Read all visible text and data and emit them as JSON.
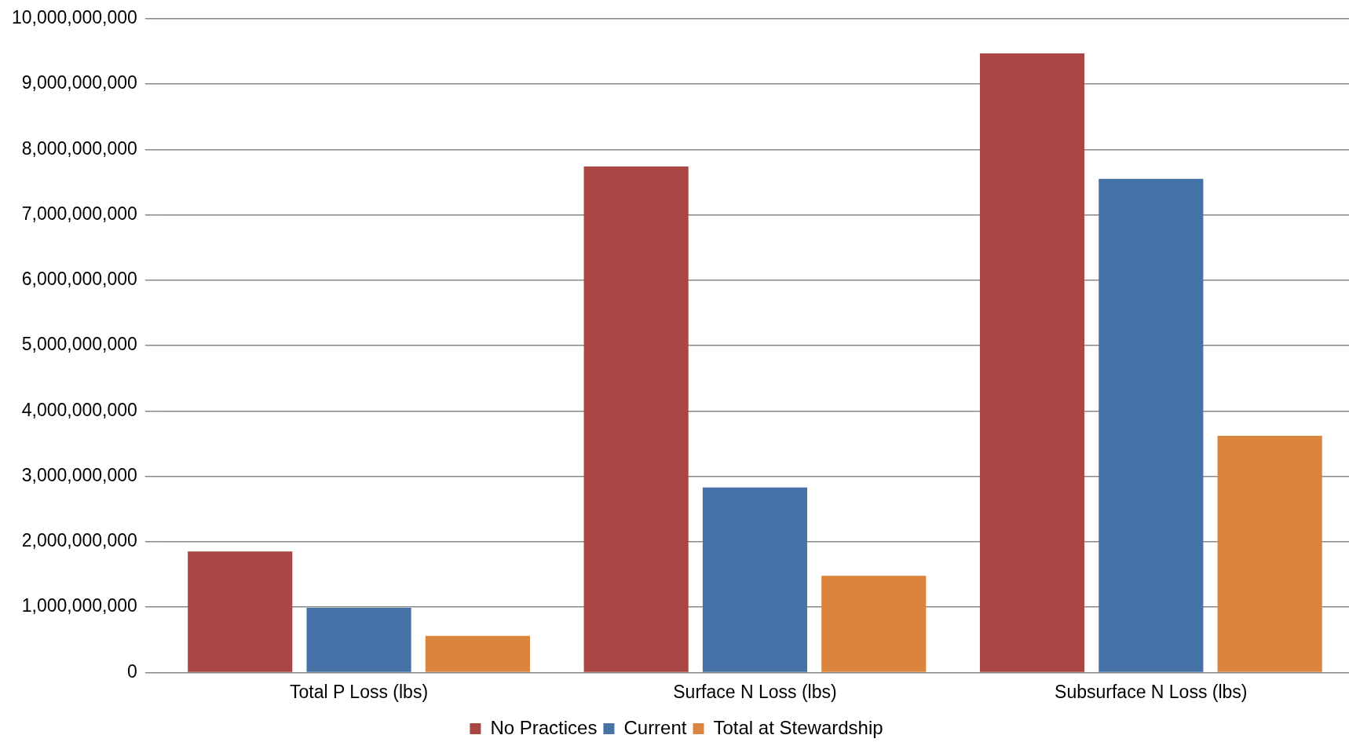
{
  "chart_data": {
    "type": "bar",
    "categories": [
      "Total P Loss (lbs)",
      "Surface N Loss (lbs)",
      "Subsurface N Loss (lbs)"
    ],
    "series": [
      {
        "name": "No Practices",
        "color": "#aa4643",
        "values": [
          1850000000,
          7740000000,
          9470000000
        ]
      },
      {
        "name": "Current",
        "color": "#4572a7",
        "values": [
          990000000,
          2830000000,
          7550000000
        ]
      },
      {
        "name": "Total at Stewardship",
        "color": "#db843d",
        "values": [
          560000000,
          1480000000,
          3620000000
        ]
      }
    ],
    "ylim": [
      0,
      10000000000
    ],
    "yticks": [
      0,
      {
        "value": 1000000000,
        "label": "1,000,000,000"
      },
      {
        "value": 2000000000,
        "label": "2,000,000,000"
      },
      {
        "value": 3000000000,
        "label": "3,000,000,000"
      },
      {
        "value": 4000000000,
        "label": "4,000,000,000"
      },
      {
        "value": 5000000000,
        "label": "5,000,000,000"
      },
      {
        "value": 6000000000,
        "label": "6,000,000,000"
      },
      {
        "value": 7000000000,
        "label": "7,000,000,000"
      },
      {
        "value": 8000000000,
        "label": "8,000,000,000"
      },
      {
        "value": 9000000000,
        "label": "9,000,000,000"
      },
      {
        "value": 10000000000,
        "label": "10,000,000,000"
      }
    ],
    "grid": "y",
    "legend": "bottom"
  }
}
